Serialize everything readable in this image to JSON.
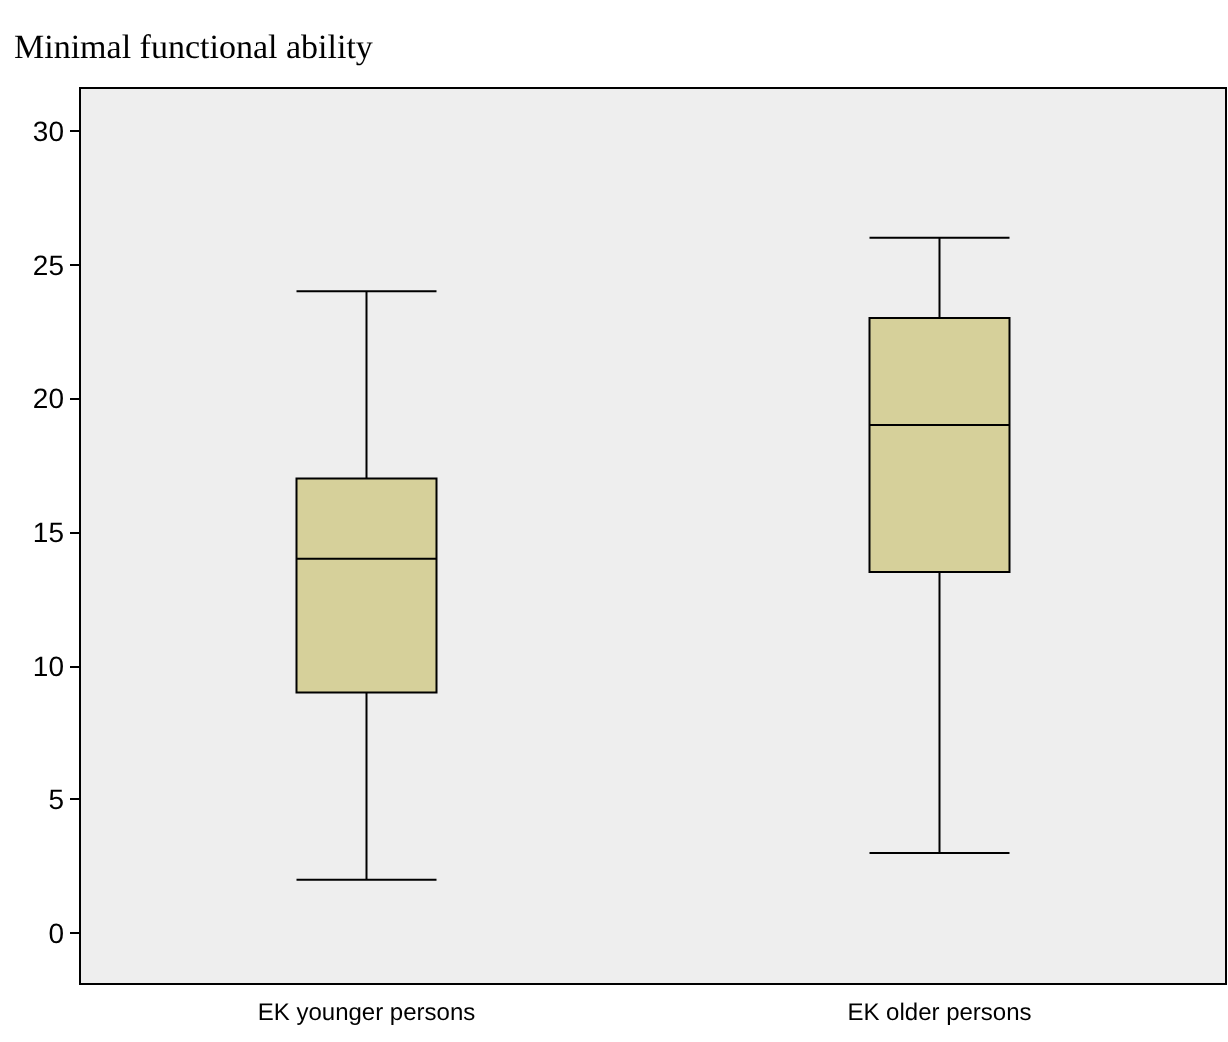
{
  "chart_data": {
    "type": "box",
    "title": "Minimal functional ability",
    "categories": [
      "EK younger persons",
      "EK older persons"
    ],
    "boxes": [
      {
        "low": 2,
        "q1": 9,
        "median": 14,
        "q3": 17,
        "high": 24
      },
      {
        "low": 3,
        "q1": 13.5,
        "median": 19,
        "q3": 23,
        "high": 26
      }
    ],
    "color": "#d6d09a",
    "ylim": [
      -1.9,
      31.6
    ],
    "yticks": [
      0,
      5,
      10,
      15,
      20,
      25,
      30
    ],
    "grid": false
  }
}
